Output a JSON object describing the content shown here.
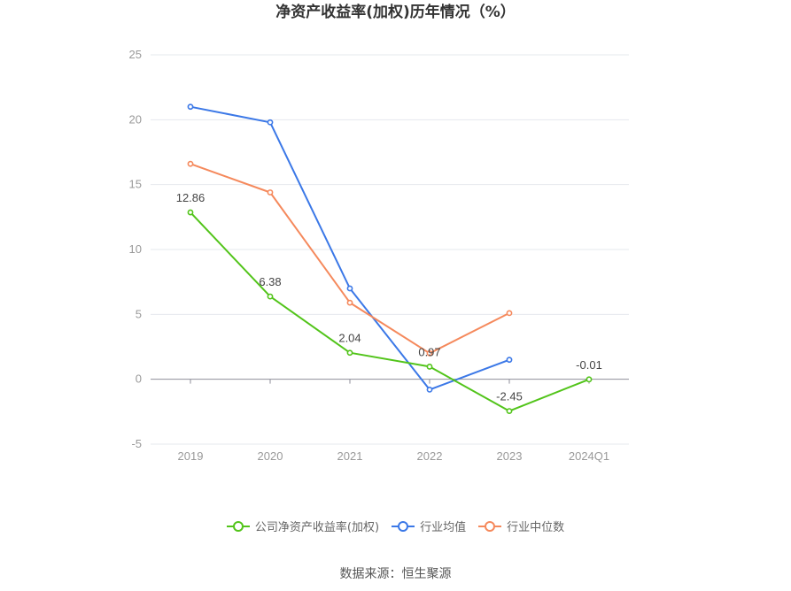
{
  "chart_data": {
    "type": "line",
    "title": "净资产收益率(加权)历年情况（%）",
    "categories": [
      "2019",
      "2020",
      "2021",
      "2022",
      "2023",
      "2024Q1"
    ],
    "ylim": [
      -5,
      25
    ],
    "yticks": [
      25,
      20,
      15,
      10,
      5,
      0,
      -5
    ],
    "grid": true,
    "legend_position": "bottom",
    "series": [
      {
        "name": "公司净资产收益率(加权)",
        "color": "#52c41a",
        "values": [
          12.86,
          6.38,
          2.04,
          0.97,
          -2.45,
          -0.01
        ],
        "labels": [
          "12.86",
          "6.38",
          "2.04",
          "0.97",
          "-2.45",
          "-0.01"
        ]
      },
      {
        "name": "行业均值",
        "color": "#3b78e7",
        "values": [
          21.0,
          19.8,
          7.0,
          -0.8,
          1.5,
          null
        ]
      },
      {
        "name": "行业中位数",
        "color": "#f5895c",
        "values": [
          16.6,
          14.4,
          5.9,
          2.0,
          5.1,
          null
        ]
      }
    ]
  },
  "source": "数据来源：恒生聚源"
}
